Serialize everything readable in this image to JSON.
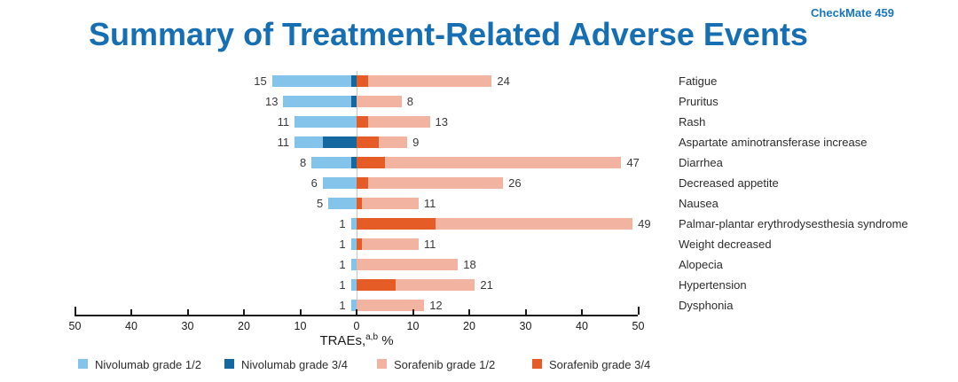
{
  "header": {
    "badge": "CheckMate 459",
    "title": "Summary of Treatment-Related Adverse Events"
  },
  "chart_data": {
    "type": "bar",
    "subtype": "diverging-stacked-horizontal",
    "title": "Summary of Treatment-Related Adverse Events",
    "xlabel_prefix": "TRAEs,",
    "xlabel_sup": "a,b",
    "xlabel_suffix": " %",
    "xlim": [
      -50,
      50
    ],
    "axis_ticks": [
      "50",
      "40",
      "30",
      "20",
      "10",
      "0",
      "10",
      "20",
      "30",
      "40",
      "50"
    ],
    "grid": "zero-line-only",
    "legend_position": "bottom",
    "categories": [
      "Fatigue",
      "Pruritus",
      "Rash",
      "Aspartate aminotransferase increase",
      "Diarrhea",
      "Decreased appetite",
      "Nausea",
      "Palmar-plantar erythrodysesthesia syndrome",
      "Weight decreased",
      "Alopecia",
      "Hypertension",
      "Dysphonia"
    ],
    "series": [
      {
        "name": "Nivolumab grade 1/2",
        "side": "left",
        "stack_order": "outer",
        "color": "#85c4ea",
        "values": [
          14,
          12,
          11,
          5,
          7,
          6,
          5,
          1,
          1,
          1,
          1,
          1
        ]
      },
      {
        "name": "Nivolumab grade 3/4",
        "side": "left",
        "stack_order": "inner",
        "color": "#15679f",
        "values": [
          1,
          1,
          0,
          6,
          1,
          0,
          0,
          0,
          0,
          0,
          0,
          0
        ]
      },
      {
        "name": "Sorafenib grade 1/2",
        "side": "right",
        "stack_order": "outer",
        "color": "#f2b3a0",
        "values": [
          22,
          8,
          11,
          5,
          42,
          24,
          10,
          35,
          10,
          18,
          14,
          12
        ]
      },
      {
        "name": "Sorafenib grade 3/4",
        "side": "right",
        "stack_order": "inner",
        "color": "#e55c26",
        "values": [
          2,
          0,
          2,
          4,
          5,
          2,
          1,
          14,
          1,
          0,
          7,
          0
        ]
      }
    ],
    "left_total_labels": [
      "15",
      "13",
      "11",
      "11",
      "8",
      "6",
      "5",
      "1",
      "1",
      "1",
      "1",
      "1"
    ],
    "right_total_labels": [
      "24",
      "8",
      "13",
      "9",
      "47",
      "26",
      "11",
      "49",
      "11",
      "18",
      "21",
      "12"
    ],
    "colors": {
      "title": "#176fb3",
      "badge": "#1877bc",
      "nivolumab_grade12": "#85c4ea",
      "nivolumab_grade34": "#15679f",
      "sorafenib_grade12": "#f2b3a0",
      "sorafenib_grade34": "#e55c26",
      "zero_line": "#c9c9c9",
      "axis": "#1a1a1a"
    }
  }
}
